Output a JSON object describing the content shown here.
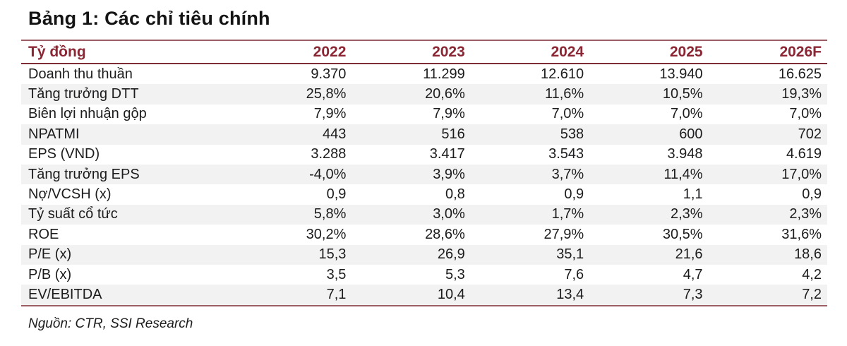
{
  "title": "Bảng 1: Các chỉ tiêu chính",
  "source": "Nguồn: CTR, SSI Research",
  "colors": {
    "header_text": "#8b2635",
    "border_outer": "#9c5d65",
    "border_header_bottom": "#7e2d37",
    "row_alt_bg": "#f2f2f2",
    "body_text": "#1c1c1e"
  },
  "table": {
    "unit_label": "Tỷ đồng",
    "columns": [
      "2022",
      "2023",
      "2024",
      "2025",
      "2026F"
    ],
    "rows": [
      {
        "label": "Doanh thu thuần",
        "values": [
          "9.370",
          "11.299",
          "12.610",
          "13.940",
          "16.625"
        ]
      },
      {
        "label": "Tăng trưởng DTT",
        "values": [
          "25,8%",
          "20,6%",
          "11,6%",
          "10,5%",
          "19,3%"
        ]
      },
      {
        "label": "Biên lợi nhuận gộp",
        "values": [
          "7,9%",
          "7,9%",
          "7,0%",
          "7,0%",
          "7,0%"
        ]
      },
      {
        "label": "NPATMI",
        "values": [
          "443",
          "516",
          "538",
          "600",
          "702"
        ]
      },
      {
        "label": "EPS (VND)",
        "values": [
          "3.288",
          "3.417",
          "3.543",
          "3.948",
          "4.619"
        ]
      },
      {
        "label": "Tăng trưởng EPS",
        "values": [
          "-4,0%",
          "3,9%",
          "3,7%",
          "11,4%",
          "17,0%"
        ]
      },
      {
        "label": "Nợ/VCSH (x)",
        "values": [
          "0,9",
          "0,8",
          "0,9",
          "1,1",
          "0,9"
        ]
      },
      {
        "label": "Tỷ suất cổ tức",
        "values": [
          "5,8%",
          "3,0%",
          "1,7%",
          "2,3%",
          "2,3%"
        ]
      },
      {
        "label": "ROE",
        "values": [
          "30,2%",
          "28,6%",
          "27,9%",
          "30,5%",
          "31,6%"
        ]
      },
      {
        "label": "P/E (x)",
        "values": [
          "15,3",
          "26,9",
          "35,1",
          "21,6",
          "18,6"
        ]
      },
      {
        "label": "P/B (x)",
        "values": [
          "3,5",
          "5,3",
          "7,6",
          "4,7",
          "4,2"
        ]
      },
      {
        "label": "EV/EBITDA",
        "values": [
          "7,1",
          "10,4",
          "13,4",
          "7,3",
          "7,2"
        ]
      }
    ]
  }
}
